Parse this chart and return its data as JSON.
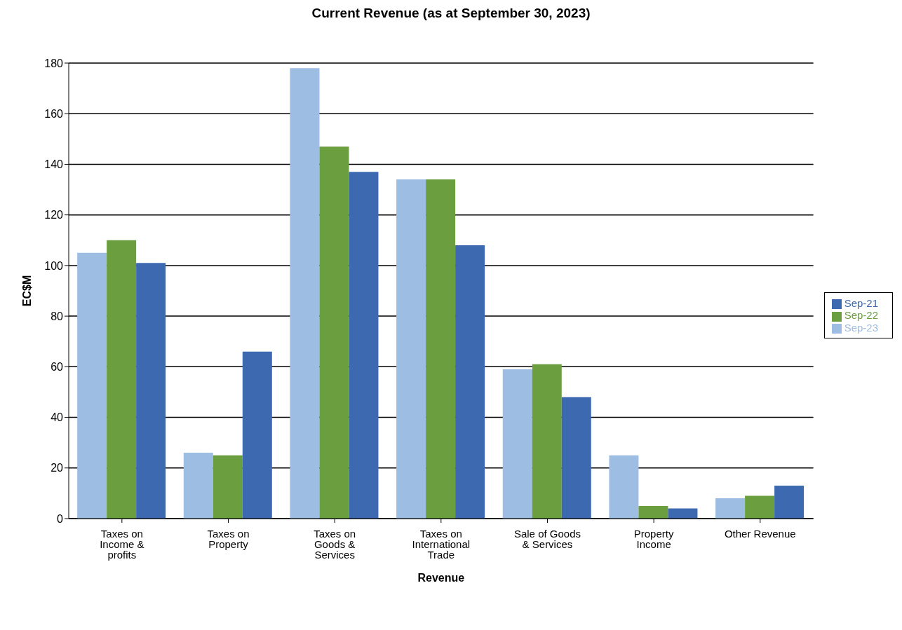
{
  "chart_data": {
    "type": "bar",
    "title": "Current Revenue (as at September 30, 2023)",
    "xlabel": "Revenue",
    "ylabel": "EC$M",
    "categories": [
      "Taxes on Income & profits",
      "Taxes on Property",
      "Taxes on Goods & Services",
      "Taxes on International Trade",
      "Sale of Goods & Services",
      "Property Income",
      "Other Revenue"
    ],
    "series": [
      {
        "name": "Sep-23",
        "color": "#9dbde3",
        "values": [
          105,
          26,
          178,
          134,
          59,
          25,
          8
        ]
      },
      {
        "name": "Sep-22",
        "color": "#6a9e3f",
        "values": [
          110,
          25,
          147,
          134,
          61,
          5,
          9
        ]
      },
      {
        "name": "Sep-21",
        "color": "#3d69b0",
        "values": [
          101,
          66,
          137,
          108,
          48,
          4,
          13
        ]
      }
    ],
    "ylim": [
      0,
      180
    ],
    "yticks": [
      0,
      20,
      40,
      60,
      80,
      100,
      120,
      140,
      160,
      180
    ],
    "grid": "y",
    "legend": "right"
  }
}
